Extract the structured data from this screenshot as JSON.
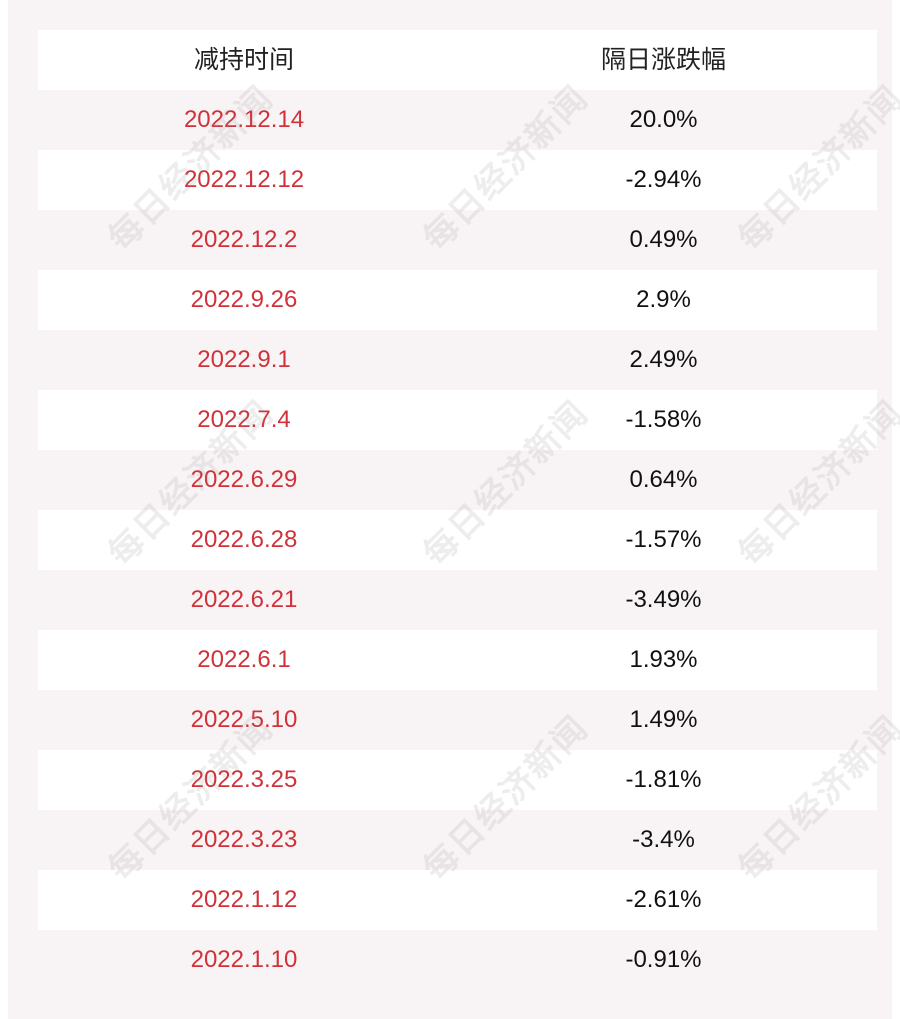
{
  "table": {
    "headers": [
      "减持时间",
      "隔日涨跌幅"
    ],
    "rows": [
      {
        "date": "2022.12.14",
        "change": "20.0%"
      },
      {
        "date": "2022.12.12",
        "change": "-2.94%"
      },
      {
        "date": "2022.12.2",
        "change": "0.49%"
      },
      {
        "date": "2022.9.26",
        "change": "2.9%"
      },
      {
        "date": "2022.9.1",
        "change": "2.49%"
      },
      {
        "date": "2022.7.4",
        "change": "-1.58%"
      },
      {
        "date": "2022.6.29",
        "change": "0.64%"
      },
      {
        "date": "2022.6.28",
        "change": "-1.57%"
      },
      {
        "date": "2022.6.21",
        "change": "-3.49%"
      },
      {
        "date": "2022.6.1",
        "change": "1.93%"
      },
      {
        "date": "2022.5.10",
        "change": "1.49%"
      },
      {
        "date": "2022.3.25",
        "change": "-1.81%"
      },
      {
        "date": "2022.3.23",
        "change": "-3.4%"
      },
      {
        "date": "2022.1.12",
        "change": "-2.61%"
      },
      {
        "date": "2022.1.10",
        "change": "-0.91%"
      }
    ]
  },
  "watermark": "每日经济新闻",
  "colors": {
    "date_text": "#d0323a",
    "value_text": "#111111",
    "stripe": "#f8f4f5",
    "row_white": "#ffffff"
  }
}
